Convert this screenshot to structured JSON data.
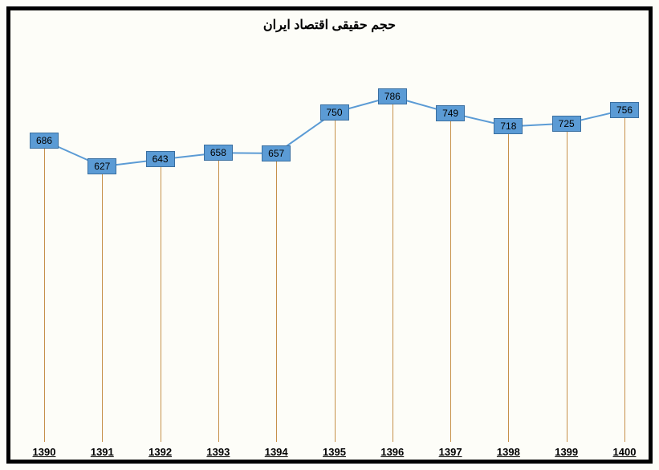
{
  "chart": {
    "type": "line-with-droplines",
    "title": "حجم حقیقی اقتصاد ایران",
    "title_fontsize": 16,
    "title_weight": "bold",
    "title_color": "#000000",
    "categories": [
      "1390",
      "1391",
      "1392",
      "1393",
      "1394",
      "1395",
      "1396",
      "1397",
      "1398",
      "1399",
      "1400"
    ],
    "values": [
      686,
      627,
      643,
      658,
      657,
      750,
      786,
      749,
      718,
      725,
      756
    ],
    "ylim": [
      0,
      900
    ],
    "xlabel_fontsize": 13,
    "xlabel_color": "#000000",
    "value_label_fontsize": 12,
    "value_label_color": "#000000",
    "background_color": "#fdfdf8",
    "frame_border_color": "#000000",
    "frame_border_width": 5,
    "marker_fill": "#5b9bd5",
    "marker_border": "#3a6fa0",
    "marker_width": 36,
    "marker_height": 20,
    "line_color": "#5b9bd5",
    "line_width": 2,
    "dropline_color": "#c6914a",
    "dropline_width": 1.5,
    "plot_left_pad": 42,
    "plot_right_pad": 30
  }
}
